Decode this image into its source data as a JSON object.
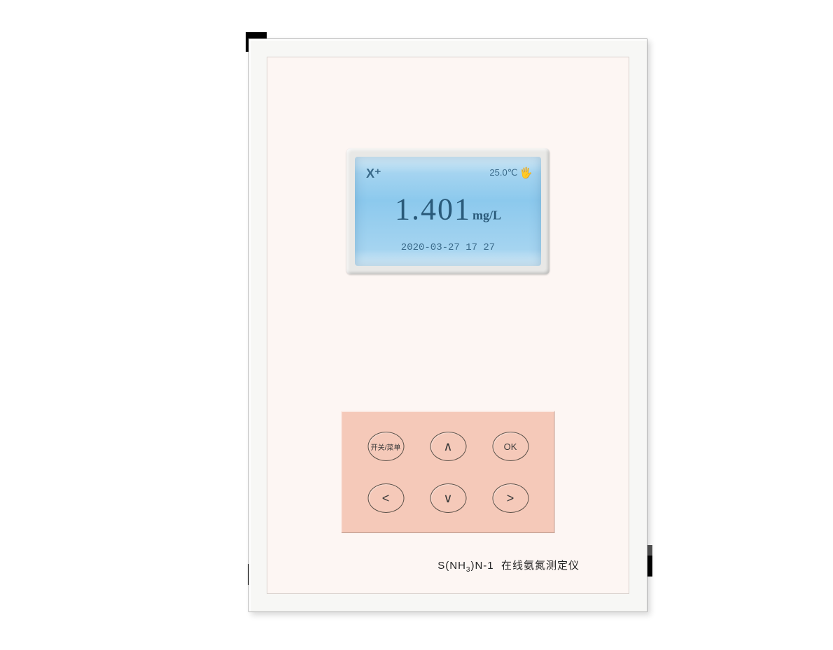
{
  "device": {
    "outer_bg": "#f7f7f5",
    "inner_bg": "#fdf6f3",
    "border_color": "#b0b0b0"
  },
  "lcd": {
    "status_left": "X⁺",
    "temperature": "25.0℃",
    "reading_value": "1.401",
    "reading_unit": "mg/L",
    "datetime": "2020-03-27  17 27",
    "bg_gradient_top": "#d8ecf7",
    "bg_gradient_mid": "#8cc9ed",
    "text_color": "#2a5a7a",
    "value_fontsize": 44,
    "unit_fontsize": 18,
    "status_fontsize": 14
  },
  "keypad": {
    "bg_color": "#f5c9b9",
    "button_border": "#5a5048",
    "buttons": {
      "menu": "开关/菜单",
      "up": "∧",
      "ok": "OK",
      "left": "<",
      "down": "∨",
      "right": ">"
    }
  },
  "label": {
    "model_prefix": "S(NH",
    "model_sub": "3",
    "model_suffix": ")N-1",
    "model_name": "在线氨氮测定仪",
    "fontsize": 15,
    "color": "#222222"
  }
}
